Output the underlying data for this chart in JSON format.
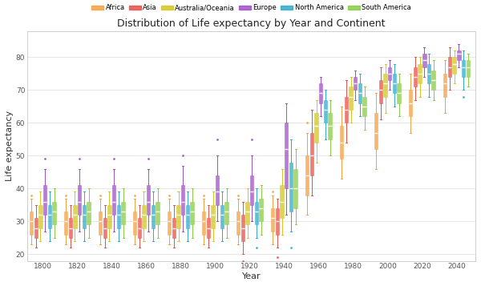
{
  "title": "Distribution of Life expectancy by Year and Continent",
  "xlabel": "Year",
  "ylabel": "Life expectancy",
  "continents": [
    "Africa",
    "Asia",
    "Australia/Oceania",
    "Europe",
    "North America",
    "South America"
  ],
  "colors": {
    "Africa": "#F4A040",
    "Asia": "#E8504A",
    "Australia/Oceania": "#D4C620",
    "Europe": "#A050C8",
    "North America": "#30AACC",
    "South America": "#88CC44"
  },
  "years": [
    1800,
    1820,
    1840,
    1860,
    1880,
    1900,
    1920,
    1940,
    1960,
    1980,
    2000,
    2020,
    2040
  ],
  "box_data": {
    "Africa": {
      "1800": {
        "wlo": 23,
        "q1": 26,
        "med": 30,
        "q3": 33,
        "whi": 37,
        "out_lo": [],
        "out_hi": [
          38
        ]
      },
      "1820": {
        "wlo": 23,
        "q1": 26,
        "med": 30,
        "q3": 33,
        "whi": 37,
        "out_lo": [],
        "out_hi": [
          38
        ]
      },
      "1840": {
        "wlo": 23,
        "q1": 26,
        "med": 30,
        "q3": 33,
        "whi": 37,
        "out_lo": [],
        "out_hi": [
          38
        ]
      },
      "1860": {
        "wlo": 23,
        "q1": 26,
        "med": 30,
        "q3": 33,
        "whi": 37,
        "out_lo": [],
        "out_hi": [
          38
        ]
      },
      "1880": {
        "wlo": 23,
        "q1": 26,
        "med": 30,
        "q3": 33,
        "whi": 37,
        "out_lo": [],
        "out_hi": [
          38
        ]
      },
      "1900": {
        "wlo": 23,
        "q1": 26,
        "med": 30,
        "q3": 33,
        "whi": 37,
        "out_lo": [],
        "out_hi": [
          38
        ]
      },
      "1920": {
        "wlo": 23,
        "q1": 26,
        "med": 30,
        "q3": 33,
        "whi": 37,
        "out_lo": [],
        "out_hi": [
          38
        ]
      },
      "1940": {
        "wlo": 23,
        "q1": 27,
        "med": 31,
        "q3": 34,
        "whi": 38,
        "out_lo": [],
        "out_hi": [
          39
        ]
      },
      "1960": {
        "wlo": 32,
        "q1": 38,
        "med": 44,
        "q3": 50,
        "whi": 57,
        "out_lo": [],
        "out_hi": [
          60
        ]
      },
      "1980": {
        "wlo": 43,
        "q1": 49,
        "med": 54,
        "q3": 59,
        "whi": 65,
        "out_lo": [],
        "out_hi": []
      },
      "2000": {
        "wlo": 46,
        "q1": 52,
        "med": 57,
        "q3": 63,
        "whi": 69,
        "out_lo": [],
        "out_hi": []
      },
      "2020": {
        "wlo": 57,
        "q1": 62,
        "med": 66,
        "q3": 70,
        "whi": 75,
        "out_lo": [],
        "out_hi": []
      },
      "2040": {
        "wlo": 63,
        "q1": 68,
        "med": 72,
        "q3": 75,
        "whi": 79,
        "out_lo": [],
        "out_hi": []
      }
    },
    "Asia": {
      "1800": {
        "wlo": 22,
        "q1": 25,
        "med": 28,
        "q3": 31,
        "whi": 35,
        "out_lo": [],
        "out_hi": []
      },
      "1820": {
        "wlo": 22,
        "q1": 25,
        "med": 28,
        "q3": 31,
        "whi": 35,
        "out_lo": [],
        "out_hi": []
      },
      "1840": {
        "wlo": 22,
        "q1": 25,
        "med": 28,
        "q3": 31,
        "whi": 35,
        "out_lo": [],
        "out_hi": []
      },
      "1860": {
        "wlo": 22,
        "q1": 25,
        "med": 28,
        "q3": 31,
        "whi": 35,
        "out_lo": [],
        "out_hi": []
      },
      "1880": {
        "wlo": 22,
        "q1": 25,
        "med": 28,
        "q3": 31,
        "whi": 35,
        "out_lo": [],
        "out_hi": []
      },
      "1900": {
        "wlo": 22,
        "q1": 25,
        "med": 28,
        "q3": 31,
        "whi": 35,
        "out_lo": [],
        "out_hi": []
      },
      "1920": {
        "wlo": 20,
        "q1": 24,
        "med": 28,
        "q3": 32,
        "whi": 36,
        "out_lo": [
          18
        ],
        "out_hi": []
      },
      "1940": {
        "wlo": 22,
        "q1": 26,
        "med": 30,
        "q3": 34,
        "whi": 37,
        "out_lo": [
          17,
          19
        ],
        "out_hi": []
      },
      "1960": {
        "wlo": 38,
        "q1": 44,
        "med": 50,
        "q3": 57,
        "whi": 64,
        "out_lo": [],
        "out_hi": []
      },
      "1980": {
        "wlo": 54,
        "q1": 60,
        "med": 64,
        "q3": 68,
        "whi": 73,
        "out_lo": [],
        "out_hi": []
      },
      "2000": {
        "wlo": 61,
        "q1": 66,
        "med": 70,
        "q3": 73,
        "whi": 77,
        "out_lo": [],
        "out_hi": []
      },
      "2020": {
        "wlo": 67,
        "q1": 71,
        "med": 74,
        "q3": 77,
        "whi": 80,
        "out_lo": [],
        "out_hi": []
      },
      "2040": {
        "wlo": 70,
        "q1": 74,
        "med": 77,
        "q3": 80,
        "whi": 83,
        "out_lo": [],
        "out_hi": []
      }
    },
    "Australia/Oceania": {
      "1800": {
        "wlo": 24,
        "q1": 28,
        "med": 32,
        "q3": 35,
        "whi": 39,
        "out_lo": [],
        "out_hi": []
      },
      "1820": {
        "wlo": 24,
        "q1": 28,
        "med": 32,
        "q3": 35,
        "whi": 39,
        "out_lo": [],
        "out_hi": []
      },
      "1840": {
        "wlo": 24,
        "q1": 28,
        "med": 32,
        "q3": 35,
        "whi": 39,
        "out_lo": [],
        "out_hi": []
      },
      "1860": {
        "wlo": 24,
        "q1": 28,
        "med": 32,
        "q3": 35,
        "whi": 39,
        "out_lo": [],
        "out_hi": []
      },
      "1880": {
        "wlo": 24,
        "q1": 28,
        "med": 32,
        "q3": 35,
        "whi": 39,
        "out_lo": [],
        "out_hi": []
      },
      "1900": {
        "wlo": 24,
        "q1": 28,
        "med": 32,
        "q3": 35,
        "whi": 39,
        "out_lo": [],
        "out_hi": []
      },
      "1920": {
        "wlo": 25,
        "q1": 29,
        "med": 33,
        "q3": 36,
        "whi": 40,
        "out_lo": [],
        "out_hi": []
      },
      "1940": {
        "wlo": 26,
        "q1": 31,
        "med": 36,
        "q3": 41,
        "whi": 46,
        "out_lo": [],
        "out_hi": []
      },
      "1960": {
        "wlo": 48,
        "q1": 54,
        "med": 59,
        "q3": 63,
        "whi": 67,
        "out_lo": [],
        "out_hi": []
      },
      "1980": {
        "wlo": 60,
        "q1": 64,
        "med": 68,
        "q3": 71,
        "whi": 74,
        "out_lo": [],
        "out_hi": []
      },
      "2000": {
        "wlo": 63,
        "q1": 68,
        "med": 72,
        "q3": 75,
        "whi": 78,
        "out_lo": [],
        "out_hi": []
      },
      "2020": {
        "wlo": 68,
        "q1": 72,
        "med": 75,
        "q3": 78,
        "whi": 80,
        "out_lo": [],
        "out_hi": []
      },
      "2040": {
        "wlo": 72,
        "q1": 75,
        "med": 78,
        "q3": 80,
        "whi": 82,
        "out_lo": [],
        "out_hi": []
      }
    },
    "Europe": {
      "1800": {
        "wlo": 27,
        "q1": 32,
        "med": 36,
        "q3": 41,
        "whi": 46,
        "out_lo": [],
        "out_hi": [
          49
        ]
      },
      "1820": {
        "wlo": 27,
        "q1": 32,
        "med": 36,
        "q3": 41,
        "whi": 46,
        "out_lo": [],
        "out_hi": [
          49
        ]
      },
      "1840": {
        "wlo": 27,
        "q1": 32,
        "med": 36,
        "q3": 41,
        "whi": 46,
        "out_lo": [],
        "out_hi": [
          49
        ]
      },
      "1860": {
        "wlo": 27,
        "q1": 32,
        "med": 36,
        "q3": 41,
        "whi": 46,
        "out_lo": [],
        "out_hi": [
          49
        ]
      },
      "1880": {
        "wlo": 27,
        "q1": 32,
        "med": 36,
        "q3": 41,
        "whi": 47,
        "out_lo": [],
        "out_hi": [
          50
        ]
      },
      "1900": {
        "wlo": 30,
        "q1": 35,
        "med": 39,
        "q3": 44,
        "whi": 50,
        "out_lo": [],
        "out_hi": [
          55
        ]
      },
      "1920": {
        "wlo": 30,
        "q1": 35,
        "med": 39,
        "q3": 44,
        "whi": 50,
        "out_lo": [],
        "out_hi": [
          55
        ]
      },
      "1940": {
        "wlo": 32,
        "q1": 40,
        "med": 52,
        "q3": 60,
        "whi": 66,
        "out_lo": [],
        "out_hi": []
      },
      "1960": {
        "wlo": 62,
        "q1": 66,
        "med": 69,
        "q3": 72,
        "whi": 74,
        "out_lo": [],
        "out_hi": []
      },
      "1980": {
        "wlo": 67,
        "q1": 70,
        "med": 72,
        "q3": 74,
        "whi": 76,
        "out_lo": [],
        "out_hi": []
      },
      "2000": {
        "wlo": 70,
        "q1": 73,
        "med": 75,
        "q3": 77,
        "whi": 79,
        "out_lo": [],
        "out_hi": []
      },
      "2020": {
        "wlo": 74,
        "q1": 77,
        "med": 79,
        "q3": 81,
        "whi": 83,
        "out_lo": [],
        "out_hi": []
      },
      "2040": {
        "wlo": 77,
        "q1": 79,
        "med": 81,
        "q3": 82,
        "whi": 84,
        "out_lo": [],
        "out_hi": []
      }
    },
    "North America": {
      "1800": {
        "wlo": 24,
        "q1": 28,
        "med": 32,
        "q3": 35,
        "whi": 39,
        "out_lo": [],
        "out_hi": []
      },
      "1820": {
        "wlo": 24,
        "q1": 28,
        "med": 32,
        "q3": 35,
        "whi": 39,
        "out_lo": [],
        "out_hi": []
      },
      "1840": {
        "wlo": 24,
        "q1": 28,
        "med": 32,
        "q3": 35,
        "whi": 39,
        "out_lo": [],
        "out_hi": []
      },
      "1860": {
        "wlo": 24,
        "q1": 28,
        "med": 32,
        "q3": 35,
        "whi": 39,
        "out_lo": [],
        "out_hi": []
      },
      "1880": {
        "wlo": 24,
        "q1": 28,
        "med": 32,
        "q3": 35,
        "whi": 39,
        "out_lo": [],
        "out_hi": []
      },
      "1900": {
        "wlo": 24,
        "q1": 28,
        "med": 32,
        "q3": 35,
        "whi": 39,
        "out_lo": [],
        "out_hi": []
      },
      "1920": {
        "wlo": 25,
        "q1": 29,
        "med": 33,
        "q3": 36,
        "whi": 40,
        "out_lo": [
          22
        ],
        "out_hi": []
      },
      "1940": {
        "wlo": 27,
        "q1": 33,
        "med": 40,
        "q3": 48,
        "whi": 55,
        "out_lo": [
          22
        ],
        "out_hi": []
      },
      "1960": {
        "wlo": 55,
        "q1": 60,
        "med": 64,
        "q3": 67,
        "whi": 70,
        "out_lo": [],
        "out_hi": []
      },
      "1980": {
        "wlo": 62,
        "q1": 66,
        "med": 69,
        "q3": 72,
        "whi": 75,
        "out_lo": [],
        "out_hi": []
      },
      "2000": {
        "wlo": 65,
        "q1": 69,
        "med": 72,
        "q3": 75,
        "whi": 78,
        "out_lo": [],
        "out_hi": []
      },
      "2020": {
        "wlo": 68,
        "q1": 72,
        "med": 75,
        "q3": 78,
        "whi": 81,
        "out_lo": [],
        "out_hi": []
      },
      "2040": {
        "wlo": 70,
        "q1": 74,
        "med": 77,
        "q3": 79,
        "whi": 82,
        "out_lo": [
          68
        ],
        "out_hi": []
      }
    },
    "South America": {
      "1800": {
        "wlo": 25,
        "q1": 29,
        "med": 33,
        "q3": 36,
        "whi": 40,
        "out_lo": [],
        "out_hi": []
      },
      "1820": {
        "wlo": 25,
        "q1": 29,
        "med": 33,
        "q3": 36,
        "whi": 40,
        "out_lo": [],
        "out_hi": []
      },
      "1840": {
        "wlo": 25,
        "q1": 29,
        "med": 33,
        "q3": 36,
        "whi": 40,
        "out_lo": [],
        "out_hi": []
      },
      "1860": {
        "wlo": 25,
        "q1": 29,
        "med": 33,
        "q3": 36,
        "whi": 40,
        "out_lo": [],
        "out_hi": []
      },
      "1880": {
        "wlo": 25,
        "q1": 29,
        "med": 33,
        "q3": 36,
        "whi": 40,
        "out_lo": [],
        "out_hi": []
      },
      "1900": {
        "wlo": 25,
        "q1": 29,
        "med": 33,
        "q3": 36,
        "whi": 40,
        "out_lo": [],
        "out_hi": []
      },
      "1920": {
        "wlo": 26,
        "q1": 30,
        "med": 34,
        "q3": 37,
        "whi": 41,
        "out_lo": [],
        "out_hi": []
      },
      "1940": {
        "wlo": 29,
        "q1": 34,
        "med": 40,
        "q3": 46,
        "whi": 52,
        "out_lo": [],
        "out_hi": []
      },
      "1960": {
        "wlo": 50,
        "q1": 55,
        "med": 59,
        "q3": 63,
        "whi": 67,
        "out_lo": [],
        "out_hi": []
      },
      "1980": {
        "wlo": 58,
        "q1": 62,
        "med": 65,
        "q3": 68,
        "whi": 71,
        "out_lo": [],
        "out_hi": []
      },
      "2000": {
        "wlo": 62,
        "q1": 66,
        "med": 69,
        "q3": 72,
        "whi": 75,
        "out_lo": [],
        "out_hi": []
      },
      "2020": {
        "wlo": 67,
        "q1": 70,
        "med": 73,
        "q3": 76,
        "whi": 79,
        "out_lo": [],
        "out_hi": []
      },
      "2040": {
        "wlo": 71,
        "q1": 74,
        "med": 77,
        "q3": 79,
        "whi": 81,
        "out_lo": [],
        "out_hi": []
      }
    }
  },
  "ylim": [
    18,
    88
  ],
  "yticks": [
    20,
    30,
    40,
    50,
    60,
    70,
    80
  ],
  "background_color": "#ffffff",
  "grid_color": "#dddddd"
}
